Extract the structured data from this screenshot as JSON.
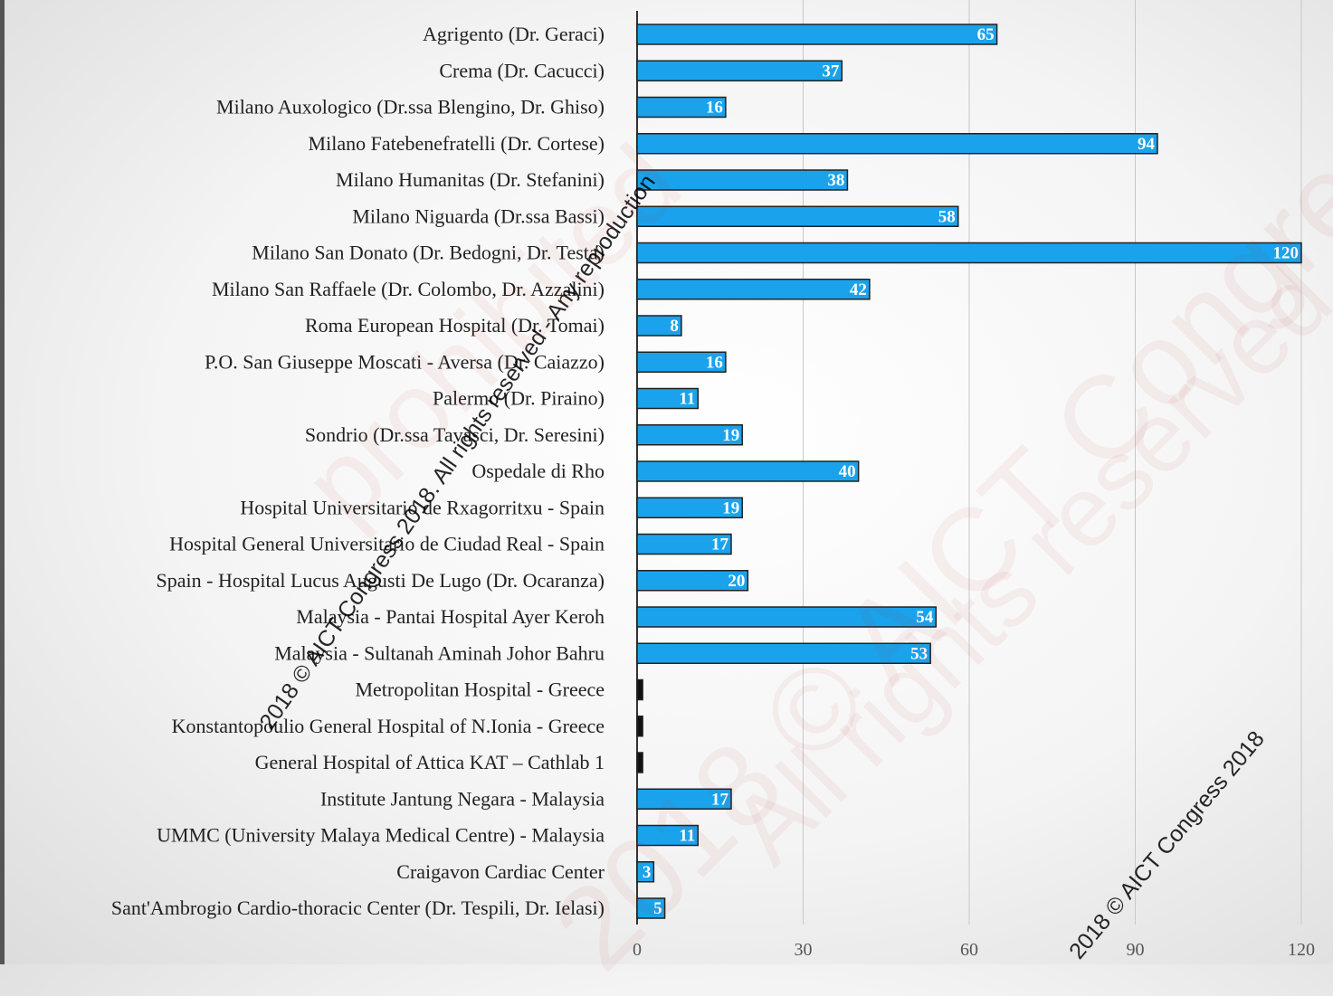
{
  "chart_data": {
    "type": "bar",
    "orientation": "horizontal",
    "categories": [
      "Agrigento (Dr. Geraci)",
      "Crema (Dr. Cacucci)",
      "Milano Auxologico (Dr.ssa Blengino, Dr. Ghiso)",
      "Milano Fatebenefratelli (Dr. Cortese)",
      "Milano Humanitas (Dr. Stefanini)",
      "Milano Niguarda (Dr.ssa Bassi)",
      "Milano San Donato (Dr. Bedogni, Dr. Testa)",
      "Milano San Raffaele (Dr. Colombo, Dr. Azzalini)",
      "Roma European Hospital (Dr. Tomai)",
      "P.O. San Giuseppe Moscati - Aversa (Dr. Caiazzo)",
      "Palermo (Dr. Piraino)",
      "Sondrio (Dr.ssa Tavasci, Dr. Seresini)",
      "Ospedale di Rho",
      "Hospital Universitario de Rxagorritxu - Spain",
      "Hospital General Universitario de Ciudad Real - Spain",
      "Spain - Hospital Lucus Augusti De Lugo (Dr. Ocaranza)",
      "Malaysia - Pantai Hospital Ayer Keroh",
      "Malaysia - Sultanah Aminah Johor Bahru",
      "Metropolitan Hospital - Greece",
      "Konstantopoulio General Hospital of N.Ionia - Greece",
      "General Hospital of Attica KAT – Cathlab 1",
      "Institute Jantung Negara - Malaysia",
      "UMMC (University Malaya Medical Centre) - Malaysia",
      "Craigavon Cardiac Center",
      "Sant'Ambrogio Cardio-thoracic Center (Dr. Tespili, Dr. Ielasi)"
    ],
    "values": [
      65,
      37,
      16,
      94,
      38,
      58,
      120,
      42,
      8,
      16,
      11,
      19,
      40,
      19,
      17,
      20,
      54,
      53,
      1,
      1,
      1,
      17,
      11,
      3,
      5
    ],
    "value_labels": [
      "65",
      "37",
      "16",
      "94",
      "38",
      "58",
      "120",
      "42",
      "8",
      "16",
      "11",
      "19",
      "40",
      "19",
      "17",
      "20",
      "54",
      "53",
      "",
      "",
      "",
      "17",
      "11",
      "3",
      "5"
    ],
    "xlim": [
      0,
      120
    ],
    "xticks": [
      "0",
      "30",
      "60",
      "90",
      "120"
    ],
    "grid": true,
    "bar_color": "#1aa3ec",
    "small_bar_color": "#111111",
    "title": "",
    "xlabel": "",
    "ylabel": ""
  },
  "watermarks": [
    "2018 © AICT Congress 2018. All rights reserved - Any reproduction",
    "2018 © AICT Congress 2018",
    "2018 © AICT Congress",
    "All rights reserved",
    "prohibited"
  ]
}
